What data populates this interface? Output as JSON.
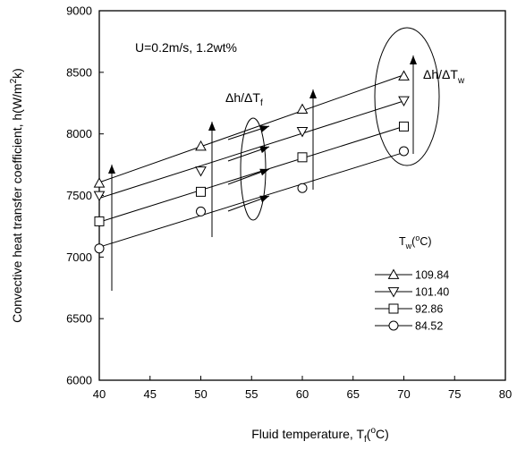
{
  "chart_data": {
    "type": "line",
    "title": "",
    "xlabel": "Fluid temperature, T",
    "xlabel_sub": "f",
    "xlabel_sup": "o",
    "xlabel_end": "C)",
    "ylabel": "Convective heat transfer coefficient, h(W/m",
    "ylabel_sup": "2",
    "ylabel_end": "k)",
    "xlim": [
      40,
      80
    ],
    "ylim": [
      6000,
      9000
    ],
    "xticks": [
      "40",
      "45",
      "50",
      "55",
      "60",
      "65",
      "70",
      "75",
      "80"
    ],
    "yticks": [
      "6000",
      "6500",
      "7000",
      "7500",
      "8000",
      "8500",
      "9000"
    ],
    "x": [
      40,
      50,
      60,
      70
    ],
    "series": [
      {
        "name": "109.84",
        "marker": "triangle-up",
        "values": [
          7600,
          7900,
          8200,
          8470
        ]
      },
      {
        "name": "101.40",
        "marker": "triangle-down",
        "values": [
          7500,
          7700,
          8020,
          8270
        ]
      },
      {
        "name": "92.86",
        "marker": "square",
        "values": [
          7290,
          7530,
          7810,
          8060
        ]
      },
      {
        "name": "84.52",
        "marker": "circle",
        "values": [
          7070,
          7370,
          7560,
          7860
        ]
      }
    ],
    "annotation_condition": "U=0.2m/s, 1.2wt%",
    "annotation_dh_dtf": "Δh/ΔT",
    "annotation_dh_dtf_sub": "f",
    "annotation_dh_dtw": "Δh/ΔT",
    "annotation_dh_dtw_sub": "w",
    "legend_title": "T",
    "legend_title_sub": "w",
    "legend_title_sup": "o",
    "legend_title_end": "C)",
    "legend_placement": "lower-right",
    "grid": false
  }
}
